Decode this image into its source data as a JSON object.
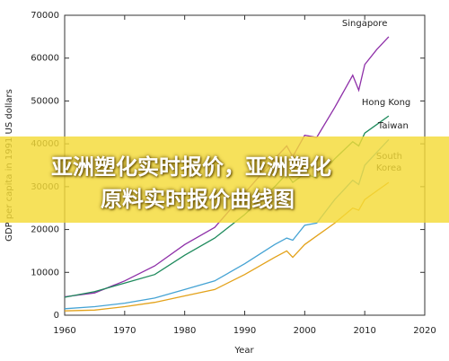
{
  "chart_data": {
    "type": "line",
    "x_label": "Year",
    "y_label": "GDP per capita in 1991 US dollars",
    "x": [
      1960,
      1965,
      1970,
      1975,
      1980,
      1985,
      1990,
      1995,
      1997,
      1998,
      2000,
      2002,
      2005,
      2008,
      2009,
      2010,
      2012,
      2014
    ],
    "series": [
      {
        "name": "Singapore",
        "color": "#8e2fa8",
        "values": [
          4300,
          5200,
          8000,
          11500,
          16500,
          20500,
          28500,
          36500,
          39500,
          37000,
          42000,
          41500,
          48500,
          56000,
          52500,
          58500,
          62000,
          65000
        ]
      },
      {
        "name": "Hong Kong",
        "color": "#1e8a5c",
        "values": [
          4200,
          5500,
          7500,
          9500,
          14000,
          18000,
          23500,
          30000,
          33000,
          31000,
          33000,
          32000,
          36500,
          40500,
          39500,
          42500,
          44500,
          46500
        ]
      },
      {
        "name": "Taiwan",
        "color": "#45a3d4",
        "values": [
          1500,
          2000,
          2800,
          4000,
          6000,
          8000,
          12000,
          16500,
          18000,
          17500,
          21000,
          21500,
          27000,
          31500,
          30500,
          35000,
          38000,
          41000
        ]
      },
      {
        "name": "South Korea",
        "color": "#e3a21a",
        "values": [
          1000,
          1200,
          2000,
          3000,
          4500,
          6000,
          9500,
          13500,
          15000,
          13500,
          16500,
          18500,
          21500,
          25000,
          24500,
          27000,
          29000,
          31000
        ]
      }
    ],
    "xlim": [
      1960,
      2020
    ],
    "xticks": [
      1960,
      1970,
      1980,
      1990,
      2000,
      2010,
      2020
    ],
    "ylim": [
      0,
      70000
    ],
    "yticks": [
      0,
      10000,
      20000,
      30000,
      40000,
      50000,
      60000,
      70000
    ],
    "grid": false
  },
  "banner": {
    "lines": [
      "亚洲塑化实时报价，亚洲塑化",
      "原料实时报价曲线图"
    ]
  }
}
